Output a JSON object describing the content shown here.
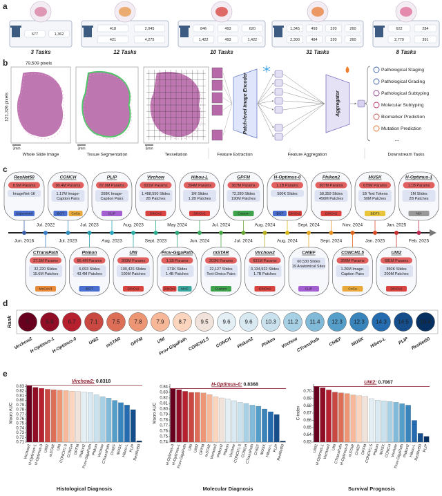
{
  "panel_labels": [
    "a",
    "b",
    "c",
    "d",
    "e"
  ],
  "cohorts": [
    {
      "tasks": "3 Tasks",
      "color": "#d98aa8",
      "counts": [
        [
          "677"
        ],
        [
          "1,362"
        ]
      ]
    },
    {
      "tasks": "12 Tasks",
      "color": "#e9a15a",
      "counts": [
        [
          "418",
          "421"
        ],
        [
          "2,045",
          "4,275"
        ]
      ]
    },
    {
      "tasks": "10 Tasks",
      "color": "#d9534f",
      "counts": [
        [
          "846",
          "1,422"
        ],
        [
          "493",
          "493"
        ],
        [
          "620",
          "1,422"
        ]
      ]
    },
    {
      "tasks": "31 Tasks",
      "color": "#e98a4a",
      "counts": [
        [
          "1,345",
          "2,300"
        ],
        [
          "493",
          "484"
        ],
        [
          "320",
          "320"
        ],
        [
          "260",
          "260"
        ]
      ]
    },
    {
      "tasks": "8 Tasks",
      "color": "#e07aa0",
      "counts": [
        [
          "622",
          "2,779"
        ],
        [
          "284",
          "391"
        ]
      ]
    }
  ],
  "pipeline": {
    "width_label": "79,509 pixels",
    "height_label": "121,326 pixels",
    "scale_bars": [
      "3mm",
      "3mm",
      "3mm"
    ],
    "stages": [
      "Whole Slide Image",
      "Tissue Segmentation",
      "Tessellation",
      "Feature Extraction",
      "Feature Aggregation",
      "Downstream Tasks"
    ],
    "encoder": "Patch-level Image Encoder",
    "aggregator": "Aggregator",
    "tasks": [
      "Pathological Staging",
      "Pathological Grading",
      "Pathological Subtyping",
      "Molecular Subtyping",
      "Biomarker Prediction",
      "Mutation Prediction"
    ],
    "more": "..."
  },
  "models": [
    {
      "name": "ResNet50",
      "date": "Jun. 2016",
      "color": "#3a5fa8",
      "params": "8.5M Params",
      "info": [
        "ImageNet-1K"
      ],
      "methods": [
        {
          "name": "Supervised",
          "color": "#4a6fd1"
        }
      ]
    },
    {
      "name": "CTransPath",
      "date": "Jul. 2022",
      "color": "#3a7fc8",
      "params": "27.5M Params",
      "info": [
        "32,220 Slides",
        "15.6M Patches"
      ],
      "methods": [
        {
          "name": "MoCoV3",
          "color": "#e8893a"
        }
      ]
    },
    {
      "name": "CONCH",
      "date": "Jul. 2023",
      "color": "#2f8fbf",
      "params": "90.4M Params",
      "info": [
        "1.17M Image-",
        "Caption Pairs"
      ],
      "methods": [
        {
          "name": "iBOT",
          "color": "#4a6fd1"
        },
        {
          "name": "CoCa",
          "color": "#e8a93a"
        }
      ]
    },
    {
      "name": "Phikon",
      "date": "Jul. 2023",
      "color": "#2a9fb0",
      "params": "86.4M Params",
      "info": [
        "6,093 Slides",
        "43.4M Patches"
      ],
      "methods": [
        {
          "name": "iBOT",
          "color": "#4a6fd1"
        }
      ]
    },
    {
      "name": "PLIP",
      "date": "Aug. 2023",
      "color": "#2aa7c0",
      "params": "87.9M Params",
      "info": [
        "208K Image-",
        "Caption Pairs"
      ],
      "methods": [
        {
          "name": "CLIP",
          "color": "#a35fd1"
        }
      ]
    },
    {
      "name": "UNI",
      "date": "Aug. 2023",
      "color": "#2ab0a8",
      "params": "303M Params",
      "info": [
        "100,426 Slides",
        "100M Patches"
      ],
      "methods": [
        {
          "name": "DINOv2",
          "color": "#d9433f"
        }
      ]
    },
    {
      "name": "Virchow",
      "date": "Sept. 2023",
      "color": "#2ab090",
      "params": "631M Params",
      "info": [
        "1,488,550 Slides",
        "2B Patches"
      ],
      "methods": [
        {
          "name": "DINOv2",
          "color": "#d9433f"
        }
      ]
    },
    {
      "name": "Prov-GigaPath",
      "date": "May 2024",
      "color": "#30a878",
      "params": "1.1B Params",
      "info": [
        "171K Slides",
        "1.4B Patches"
      ],
      "methods": [
        {
          "name": "DINOv2",
          "color": "#d9433f"
        },
        {
          "name": "MAE",
          "color": "#3aa6a0"
        }
      ]
    },
    {
      "name": "Hibou-L",
      "date": "Jun. 2024",
      "color": "#3aa860",
      "params": "304M Params",
      "info": [
        "1M Slides",
        "1.2B Patches"
      ],
      "methods": [
        {
          "name": "DINOv2",
          "color": "#d9433f"
        }
      ]
    },
    {
      "name": "mSTAR",
      "date": "Jul. 2024",
      "color": "#4aa848",
      "params": "303M Params",
      "info": [
        "22,127 Slides",
        "Text-Omics Pairs"
      ],
      "methods": [
        {
          "name": "Custom",
          "color": "#3fa34d"
        }
      ]
    },
    {
      "name": "GPFM",
      "date": "Jul. 2024",
      "color": "#6aa838",
      "params": "307M Params",
      "info": [
        "72,280 Slides",
        "190M Patches"
      ],
      "methods": [
        {
          "name": "Custom",
          "color": "#3fa34d"
        }
      ]
    },
    {
      "name": "Virchow2",
      "date": "Aug. 2024",
      "color": "#b8b020",
      "params": "631M Params",
      "info": [
        "3,134,922 Slides",
        "1.7B Patches"
      ],
      "methods": [
        {
          "name": "DINOv2",
          "color": "#d9433f"
        }
      ]
    },
    {
      "name": "H-Optimus-0",
      "date": "Aug. 2024",
      "color": "#d8b818",
      "params": "1.1B Params",
      "info": [
        "500K Slides"
      ],
      "methods": [
        {
          "name": "iBOT",
          "color": "#4a6fd1"
        },
        {
          "name": "DINOv2",
          "color": "#d9433f"
        }
      ]
    },
    {
      "name": "CHIEF",
      "date": "Sept. 2024",
      "color": "#e8a820",
      "info": [
        "60,530 Slides",
        "19 Anatomical Sites"
      ],
      "methods": [
        {
          "name": "CLIP",
          "color": "#a35fd1"
        }
      ]
    },
    {
      "name": "Phikon2",
      "date": "Sept. 2024",
      "color": "#e89020",
      "params": "307M Params",
      "info": [
        "58,359 Slides",
        "456M Patches"
      ],
      "methods": [
        {
          "name": "DINOv2",
          "color": "#d9433f"
        }
      ]
    },
    {
      "name": "CONCH1.5",
      "date": "Nov. 2024",
      "color": "#e06a20",
      "params": "306M Params",
      "info": [
        "1.26M Image-",
        "Caption Pairs"
      ],
      "methods": [
        {
          "name": "CoCa",
          "color": "#e8a93a"
        }
      ]
    },
    {
      "name": "MUSK",
      "date": "Jan. 2025",
      "color": "#d84a28",
      "params": "675M Params",
      "info": [
        "1B Text Tokens",
        "50M Patches"
      ],
      "methods": [
        {
          "name": "BEiT3",
          "color": "#e8c53a"
        }
      ]
    },
    {
      "name": "UNI2",
      "date": "Jan. 2025",
      "color": "#c83030",
      "params": "681M Params",
      "info": [
        "350K Slides",
        "200M Patches"
      ],
      "methods": [
        {
          "name": "DINOv2",
          "color": "#d9433f"
        }
      ]
    },
    {
      "name": "H-Optimus-1",
      "date": "Feb. 2025",
      "color": "#c02850",
      "params": "1.1B Params",
      "info": [
        "1M Slides",
        "2B Patches"
      ],
      "methods": [
        {
          "name": "N/A",
          "color": "#999999"
        }
      ]
    }
  ],
  "colormap": [
    "#67001f",
    "#b2182b",
    "#d6604d",
    "#f4a582",
    "#fddbc7",
    "#e3eef5",
    "#d1e5f0",
    "#92c5de",
    "#4393c3",
    "#2166ac",
    "#053061"
  ],
  "rank": {
    "label": "Rank",
    "names": [
      "Virchow2",
      "H-Optimus-1",
      "H-Optimus-0",
      "UNI2",
      "mSTAR",
      "GPFM",
      "UNI",
      "Prov-GigaPath",
      "CONCH1.5",
      "CONCH",
      "Phikon2",
      "Phikon",
      "Virchow",
      "CTransPath",
      "CHIEF",
      "MUSK",
      "Hibou-L",
      "PLIP",
      "ResNet50"
    ],
    "values": [
      5,
      5.9,
      6.7,
      7.1,
      7.5,
      7.8,
      7.9,
      8.7,
      9.5,
      9.6,
      9.6,
      10.3,
      11.2,
      11.4,
      12.3,
      12.3,
      14.3,
      14.5,
      18.4
    ]
  },
  "chart_data": [
    {
      "type": "bar",
      "title": "Histological Diagnosis",
      "ylabel": "Macro AUC",
      "highlight_label": "Virchow2:",
      "highlight": 0.8318,
      "categories": [
        "Virchow2",
        "H-Optimus-1",
        "H-Optimus-0",
        "UNI2",
        "mSTAR",
        "UNI",
        "CONCH1.5",
        "CONCH",
        "GPFM",
        "Phikon2",
        "Prov-GigaPath",
        "Phikon",
        "Virchow",
        "CTransPath",
        "CHIEF",
        "MUSK",
        "Hibou-L",
        "PLIP",
        "ResNet50"
      ],
      "values": [
        0.8318,
        0.828,
        0.826,
        0.824,
        0.823,
        0.822,
        0.821,
        0.82,
        0.819,
        0.818,
        0.817,
        0.812,
        0.808,
        0.805,
        0.8,
        0.795,
        0.79,
        0.78,
        0.713
      ],
      "ylim": [
        0.71,
        0.835
      ],
      "yticks": [
        0.71,
        0.72,
        0.73,
        0.74,
        0.75,
        0.76,
        0.77,
        0.78,
        0.79,
        {
          "value": 0.8,
          "label": "0.80"
        },
        0.81,
        0.82,
        0.83
      ]
    },
    {
      "type": "bar",
      "title": "Molecular Diagnosis",
      "ylabel": "Macro AUC",
      "highlight_label": "H-Optimus-0:",
      "highlight": 0.8368,
      "categories": [
        "H-Optimus-0",
        "H-Optimus-1",
        "Prov-GigaPath",
        "UNI",
        "UNI2",
        "GPFM",
        "mSTAR",
        "Virchow2",
        "Phikon2",
        "Phikon",
        "Virchow",
        "CONCH1.5",
        "CONCH",
        "CTransPath",
        "CHIEF",
        "MUSK",
        "Hibou-L",
        "PLIP",
        "ResNet50"
      ],
      "values": [
        0.8368,
        0.835,
        0.832,
        0.83,
        0.83,
        0.829,
        0.826,
        0.822,
        0.82,
        0.818,
        0.815,
        0.812,
        0.81,
        0.807,
        0.805,
        0.8,
        0.795,
        0.79,
        0.742
      ],
      "ylim": [
        0.74,
        0.845
      ],
      "yticks": [
        0.74,
        0.75,
        0.76,
        0.77,
        0.78,
        0.79,
        {
          "value": 0.8,
          "label": "0.80"
        },
        0.81,
        0.82,
        0.83,
        0.84
      ]
    },
    {
      "type": "bar",
      "title": "Survival Prognosis",
      "ylabel": "C-index",
      "highlight_label": "UNI2:",
      "highlight": 0.7067,
      "categories": [
        "UNI2",
        "H-Optimus-1",
        "Virchow2",
        "UNI",
        "CTransPath",
        "H-Optimus-0",
        "mSTAR",
        "CHIEF",
        "GPFM",
        "CONCH1.5",
        "Phikon",
        "MUSK",
        "CONCH",
        "Virchow",
        "Prov-GigaPath",
        "Phikon2",
        "Hibou-L",
        "ResNet50",
        "PLIP"
      ],
      "values": [
        0.7067,
        0.705,
        0.702,
        0.699,
        0.698,
        0.697,
        0.695,
        0.694,
        0.693,
        0.69,
        0.688,
        0.687,
        0.686,
        0.685,
        0.683,
        0.681,
        0.66,
        0.642,
        0.638
      ],
      "ylim": [
        0.63,
        0.71
      ],
      "yticks": [
        0.63,
        0.64,
        0.65,
        0.66,
        0.67,
        0.68,
        0.69,
        {
          "value": 0.7,
          "label": "0.70"
        }
      ]
    }
  ]
}
